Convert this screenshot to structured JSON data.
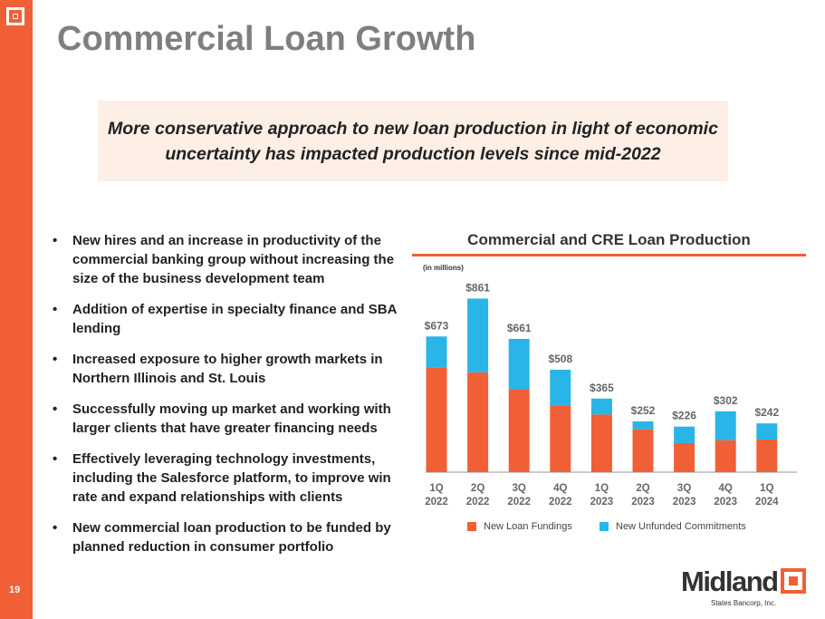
{
  "page": {
    "title": "Commercial Loan Growth",
    "page_number": "19",
    "callout": "More conservative approach to new loan production in light of economic uncertainty has impacted production levels since mid-2022"
  },
  "bullets": [
    "New hires and an increase in productivity of the commercial banking group without increasing the size of the business development team",
    "Addition of expertise in specialty finance and SBA lending",
    "Increased exposure to higher growth markets in Northern Illinois and St. Louis",
    "Successfully moving up market and working with larger clients that have greater financing needs",
    "Effectively leveraging technology investments, including the Salesforce platform, to improve win rate and expand relationships with clients",
    "New commercial loan production to be funded by planned reduction in consumer portfolio"
  ],
  "brand": {
    "name": "Midland",
    "sub": "States Bancorp, Inc."
  },
  "colors": {
    "accent": "#f15f37",
    "unfunded": "#29b5e8"
  },
  "chart_data": {
    "type": "bar",
    "stacked": true,
    "title": "Commercial and CRE Loan Production",
    "units": "(in millions)",
    "categories": [
      [
        "1Q",
        "2022"
      ],
      [
        "2Q",
        "2022"
      ],
      [
        "3Q",
        "2022"
      ],
      [
        "4Q",
        "2022"
      ],
      [
        "1Q",
        "2023"
      ],
      [
        "2Q",
        "2023"
      ],
      [
        "3Q",
        "2023"
      ],
      [
        "4Q",
        "2023"
      ],
      [
        "1Q",
        "2024"
      ]
    ],
    "totals": [
      673,
      861,
      661,
      508,
      365,
      252,
      226,
      302,
      242
    ],
    "total_labels": [
      "$673",
      "$861",
      "$661",
      "$508",
      "$365",
      "$252",
      "$226",
      "$302",
      "$242"
    ],
    "series": [
      {
        "name": "New Loan Fundings",
        "color": "#f15f37",
        "values": [
          520,
          495,
          411,
          330,
          286,
          213,
          144,
          159,
          162
        ]
      },
      {
        "name": "New Unfunded Commitments",
        "color": "#29b5e8",
        "values": [
          153,
          366,
          250,
          178,
          79,
          39,
          82,
          143,
          80
        ]
      }
    ],
    "ylim": [
      0,
      900
    ],
    "legend": "bottom"
  }
}
